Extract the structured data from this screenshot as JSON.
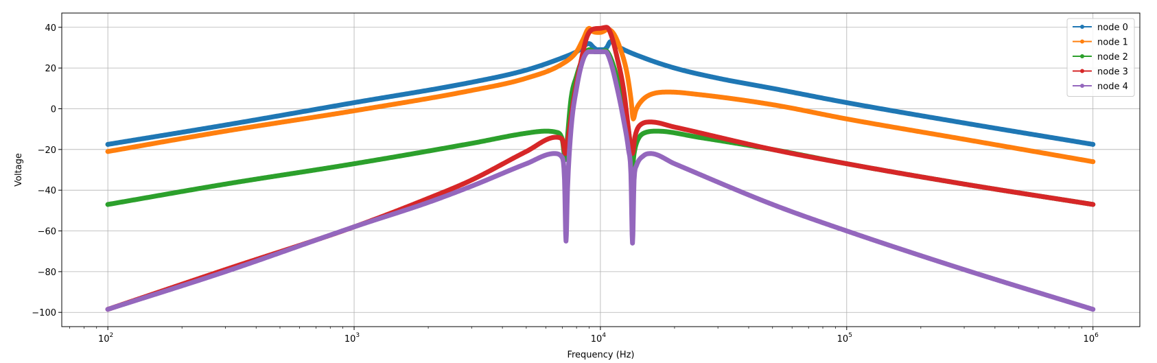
{
  "chart_data": {
    "type": "line",
    "title": "",
    "xlabel": "Frequency (Hz)",
    "ylabel": "Voltage",
    "xscale": "log",
    "xlim": [
      65,
      1550000
    ],
    "ylim": [
      -107,
      47
    ],
    "grid": true,
    "legend_position": "top-right",
    "x_ticks": [
      {
        "value": 100,
        "base": "10",
        "exp": "2"
      },
      {
        "value": 1000,
        "base": "10",
        "exp": "3"
      },
      {
        "value": 10000,
        "base": "10",
        "exp": "4"
      },
      {
        "value": 100000,
        "base": "10",
        "exp": "5"
      },
      {
        "value": 1000000,
        "base": "10",
        "exp": "6"
      }
    ],
    "y_ticks": [
      {
        "value": 40,
        "label": "40"
      },
      {
        "value": 20,
        "label": "20"
      },
      {
        "value": 0,
        "label": "0"
      },
      {
        "value": -20,
        "label": "−20"
      },
      {
        "value": -40,
        "label": "−40"
      },
      {
        "value": -60,
        "label": "−60"
      },
      {
        "value": -80,
        "label": "−80"
      },
      {
        "value": -100,
        "label": "−100"
      }
    ],
    "series": [
      {
        "name": "node 0",
        "color": "#1f77b4",
        "points": [
          [
            100,
            -17.5
          ],
          [
            300,
            -8
          ],
          [
            1000,
            3
          ],
          [
            3000,
            13
          ],
          [
            5000,
            19
          ],
          [
            7000,
            25
          ],
          [
            8000,
            28
          ],
          [
            9000,
            32
          ],
          [
            9400,
            30
          ],
          [
            9700,
            29
          ],
          [
            10000,
            29
          ],
          [
            10300,
            29
          ],
          [
            10600,
            30
          ],
          [
            11000,
            33
          ],
          [
            12000,
            30
          ],
          [
            15000,
            25
          ],
          [
            20000,
            20
          ],
          [
            30000,
            15
          ],
          [
            50000,
            10
          ],
          [
            100000,
            3
          ],
          [
            300000,
            -7
          ],
          [
            1000000,
            -17.5
          ]
        ]
      },
      {
        "name": "node 1",
        "color": "#ff7f0e",
        "points": [
          [
            100,
            -21
          ],
          [
            300,
            -11
          ],
          [
            1000,
            -1
          ],
          [
            3000,
            9
          ],
          [
            5000,
            15
          ],
          [
            7000,
            22
          ],
          [
            8000,
            28
          ],
          [
            8500,
            34
          ],
          [
            9000,
            39.5
          ],
          [
            9300,
            38
          ],
          [
            9700,
            37.5
          ],
          [
            10000,
            37.5
          ],
          [
            10300,
            38
          ],
          [
            10700,
            39
          ],
          [
            11300,
            37
          ],
          [
            12000,
            30
          ],
          [
            12800,
            18
          ],
          [
            13300,
            5
          ],
          [
            13600,
            -5
          ],
          [
            13900,
            -1
          ],
          [
            14500,
            3
          ],
          [
            16000,
            7
          ],
          [
            19000,
            8.2
          ],
          [
            25000,
            7
          ],
          [
            50000,
            2
          ],
          [
            100000,
            -5
          ],
          [
            300000,
            -15
          ],
          [
            1000000,
            -26
          ]
        ]
      },
      {
        "name": "node 2",
        "color": "#2ca02c",
        "points": [
          [
            100,
            -47
          ],
          [
            300,
            -37
          ],
          [
            1000,
            -27
          ],
          [
            3000,
            -17
          ],
          [
            5000,
            -12
          ],
          [
            6000,
            -11
          ],
          [
            6600,
            -11.5
          ],
          [
            7000,
            -15
          ],
          [
            7200,
            -25
          ],
          [
            7300,
            -18
          ],
          [
            7600,
            5
          ],
          [
            8000,
            16
          ],
          [
            8500,
            25
          ],
          [
            9000,
            29
          ],
          [
            9500,
            28
          ],
          [
            10000,
            28
          ],
          [
            10500,
            28.5
          ],
          [
            11000,
            25
          ],
          [
            12000,
            10
          ],
          [
            12800,
            -5
          ],
          [
            13300,
            -20
          ],
          [
            13500,
            -28
          ],
          [
            13700,
            -22
          ],
          [
            14000,
            -17
          ],
          [
            15000,
            -12
          ],
          [
            17000,
            -11
          ],
          [
            25000,
            -14
          ],
          [
            50000,
            -20
          ],
          [
            100000,
            -27
          ],
          [
            300000,
            -37
          ],
          [
            1000000,
            -47
          ]
        ]
      },
      {
        "name": "node 3",
        "color": "#d62728",
        "points": [
          [
            100,
            -98.5
          ],
          [
            300,
            -79
          ],
          [
            1000,
            -58
          ],
          [
            2000,
            -44
          ],
          [
            3000,
            -35
          ],
          [
            5000,
            -21
          ],
          [
            6600,
            -14
          ],
          [
            7000,
            -15
          ],
          [
            7200,
            -22
          ],
          [
            7400,
            -14
          ],
          [
            7800,
            5
          ],
          [
            8300,
            22
          ],
          [
            8800,
            35
          ],
          [
            9300,
            39
          ],
          [
            10000,
            39.5
          ],
          [
            10600,
            40
          ],
          [
            11000,
            37
          ],
          [
            11700,
            25
          ],
          [
            12400,
            10
          ],
          [
            13000,
            -10
          ],
          [
            13300,
            -20
          ],
          [
            13500,
            -22
          ],
          [
            13800,
            -14
          ],
          [
            14500,
            -8
          ],
          [
            16000,
            -6.5
          ],
          [
            20000,
            -9
          ],
          [
            50000,
            -20
          ],
          [
            100000,
            -27
          ],
          [
            300000,
            -37
          ],
          [
            1000000,
            -47
          ]
        ]
      },
      {
        "name": "node 4",
        "color": "#9467bd",
        "points": [
          [
            100,
            -98.5
          ],
          [
            300,
            -80
          ],
          [
            1000,
            -58
          ],
          [
            2000,
            -46
          ],
          [
            3000,
            -38
          ],
          [
            5000,
            -27
          ],
          [
            6500,
            -22
          ],
          [
            7000,
            -24
          ],
          [
            7150,
            -35
          ],
          [
            7250,
            -65
          ],
          [
            7350,
            -40
          ],
          [
            7600,
            -10
          ],
          [
            8000,
            10
          ],
          [
            8500,
            24
          ],
          [
            9000,
            28
          ],
          [
            10000,
            28
          ],
          [
            10500,
            28
          ],
          [
            11000,
            23
          ],
          [
            11700,
            10
          ],
          [
            12400,
            -5
          ],
          [
            13000,
            -20
          ],
          [
            13300,
            -32
          ],
          [
            13500,
            -66
          ],
          [
            13700,
            -35
          ],
          [
            14000,
            -28
          ],
          [
            15000,
            -23
          ],
          [
            16000,
            -22
          ],
          [
            20000,
            -27
          ],
          [
            50000,
            -47
          ],
          [
            100000,
            -60
          ],
          [
            300000,
            -79
          ],
          [
            1000000,
            -98.5
          ]
        ]
      }
    ]
  }
}
